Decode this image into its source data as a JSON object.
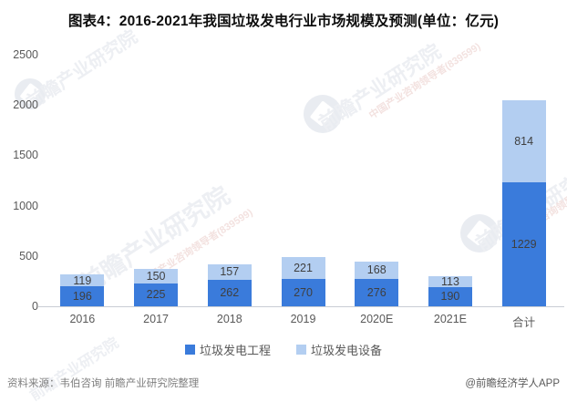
{
  "title": "图表4：2016-2021年我国垃圾发电行业市场规模及预测(单位：亿元)",
  "chart_data": {
    "type": "bar",
    "stacked": true,
    "title": "图表4：2016-2021年我国垃圾发电行业市场规模及预测(单位：亿元)",
    "unit": "亿元",
    "categories": [
      "2016",
      "2017",
      "2018",
      "2019",
      "2020E",
      "2021E",
      "合计"
    ],
    "series": [
      {
        "name": "垃圾发电工程",
        "color": "#3a7bdb",
        "values": [
          196,
          225,
          262,
          270,
          276,
          190,
          1229
        ]
      },
      {
        "name": "垃圾发电设备",
        "color": "#b3cef1",
        "values": [
          119,
          150,
          157,
          221,
          168,
          113,
          814
        ]
      }
    ],
    "ylim": [
      0,
      2500
    ],
    "yticks": [
      0,
      500,
      1000,
      1500,
      2000,
      2500
    ],
    "grid": false,
    "value_labels": true,
    "legend_position": "bottom"
  },
  "watermark": {
    "text": "前瞻产业研究院",
    "subtext": "中国产业咨询领导者(839599)"
  },
  "footer": {
    "source": "资料来源：韦伯咨询 前瞻产业研究院整理",
    "credit": "@前瞻经济学人APP"
  },
  "colors": {
    "series1": "#3a7bdb",
    "series2": "#b3cef1",
    "axis_text": "#595959",
    "value_label": "#3f3f3f",
    "baseline": "#c9cdd4",
    "title_text": "#0d0d0d"
  }
}
